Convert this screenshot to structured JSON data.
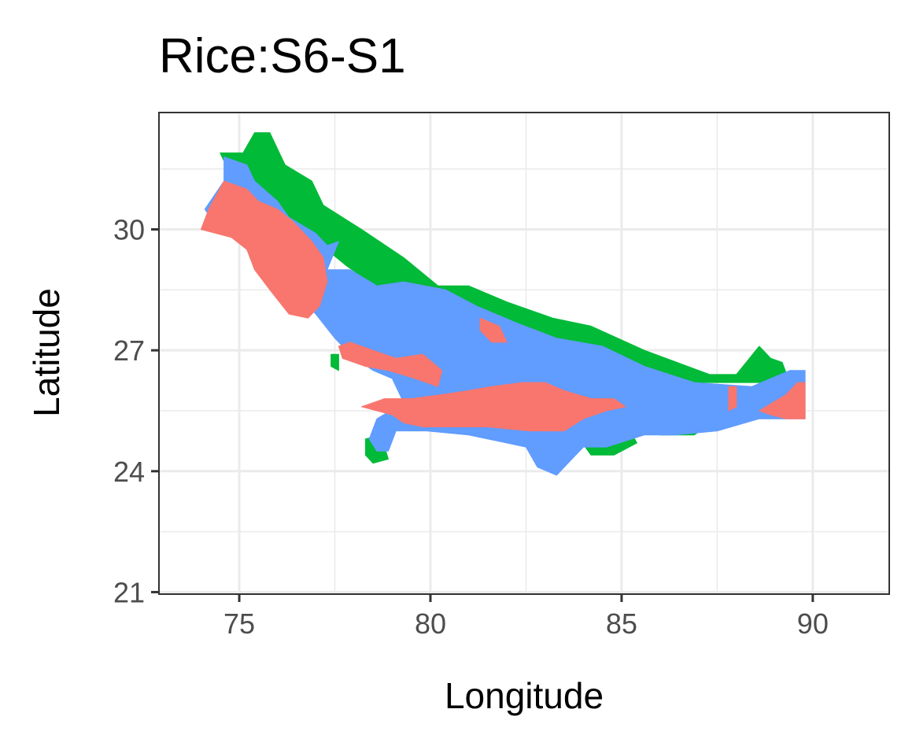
{
  "chart_data": {
    "type": "heatmap",
    "title": "Rice:S6-S1",
    "xlabel": "Longitude",
    "ylabel": "Latitude",
    "xlim": [
      72.9,
      92.0
    ],
    "ylim": [
      20.95,
      32.9
    ],
    "x_ticks": [
      75,
      80,
      85,
      90
    ],
    "y_ticks": [
      21,
      24,
      27,
      30
    ],
    "x_tick_labels": [
      "75",
      "80",
      "85",
      "90"
    ],
    "y_tick_labels": [
      "21",
      "24",
      "27",
      "30"
    ],
    "grid": true,
    "legend": "none",
    "colors": {
      "category_1": "#F8766D",
      "category_2": "#00BA38",
      "category_3": "#619CFF"
    },
    "regions": [
      {
        "color": "category_2",
        "polygons": [
          [
            [
              74.5,
              31.9
            ],
            [
              75.1,
              31.9
            ],
            [
              75.4,
              32.4
            ],
            [
              75.8,
              32.4
            ],
            [
              76.2,
              31.6
            ],
            [
              76.9,
              31.2
            ],
            [
              77.2,
              30.6
            ],
            [
              78.2,
              30.0
            ],
            [
              79.3,
              29.3
            ],
            [
              80.2,
              28.6
            ],
            [
              81.0,
              28.6
            ],
            [
              82.0,
              28.2
            ],
            [
              83.2,
              27.8
            ],
            [
              84.2,
              27.6
            ],
            [
              85.6,
              27.0
            ],
            [
              87.3,
              26.4
            ],
            [
              88.0,
              26.4
            ],
            [
              88.6,
              27.1
            ],
            [
              88.9,
              26.8
            ],
            [
              89.2,
              26.7
            ],
            [
              89.4,
              26.2
            ],
            [
              87.0,
              26.2
            ],
            [
              85.0,
              26.4
            ],
            [
              83.5,
              27.0
            ],
            [
              81.5,
              27.5
            ],
            [
              80.5,
              27.9
            ],
            [
              79.0,
              28.3
            ],
            [
              77.8,
              29.1
            ],
            [
              76.9,
              29.8
            ],
            [
              75.8,
              30.6
            ],
            [
              75.0,
              31.5
            ],
            [
              74.6,
              31.7
            ]
          ],
          [
            [
              83.9,
              25.3
            ],
            [
              84.4,
              25.4
            ],
            [
              85.1,
              25.2
            ],
            [
              85.4,
              24.7
            ],
            [
              84.8,
              24.4
            ],
            [
              84.2,
              24.4
            ],
            [
              83.9,
              24.8
            ]
          ],
          [
            [
              86.0,
              24.9
            ],
            [
              86.9,
              24.9
            ],
            [
              87.2,
              25.1
            ],
            [
              86.7,
              25.4
            ],
            [
              86.0,
              25.2
            ]
          ],
          [
            [
              78.3,
              24.8
            ],
            [
              78.7,
              24.9
            ],
            [
              78.9,
              24.3
            ],
            [
              78.5,
              24.2
            ],
            [
              78.3,
              24.4
            ]
          ],
          [
            [
              77.4,
              26.6
            ],
            [
              77.6,
              26.5
            ],
            [
              77.6,
              26.9
            ],
            [
              77.4,
              26.9
            ]
          ]
        ]
      },
      {
        "color": "category_3",
        "polygons": [
          [
            [
              74.1,
              30.5
            ],
            [
              74.6,
              31.2
            ],
            [
              74.6,
              31.8
            ],
            [
              75.2,
              31.6
            ],
            [
              75.4,
              31.2
            ],
            [
              76.0,
              30.7
            ],
            [
              76.3,
              30.3
            ],
            [
              77.0,
              29.9
            ],
            [
              77.3,
              29.6
            ],
            [
              77.6,
              29.7
            ],
            [
              77.3,
              29.0
            ],
            [
              77.9,
              29.0
            ],
            [
              78.6,
              28.6
            ],
            [
              79.3,
              28.7
            ],
            [
              80.4,
              28.5
            ],
            [
              81.2,
              28.1
            ],
            [
              82.2,
              27.7
            ],
            [
              83.3,
              27.3
            ],
            [
              84.5,
              27.1
            ],
            [
              85.6,
              26.6
            ],
            [
              86.9,
              26.2
            ],
            [
              88.4,
              26.1
            ],
            [
              89.4,
              26.5
            ],
            [
              89.8,
              26.5
            ],
            [
              89.8,
              25.3
            ],
            [
              88.6,
              25.3
            ],
            [
              87.5,
              25.0
            ],
            [
              86.4,
              24.9
            ],
            [
              85.6,
              24.9
            ],
            [
              84.6,
              24.6
            ],
            [
              84.0,
              24.6
            ],
            [
              83.7,
              24.3
            ],
            [
              83.3,
              23.9
            ],
            [
              82.8,
              24.1
            ],
            [
              82.5,
              24.6
            ],
            [
              81.0,
              24.9
            ],
            [
              79.9,
              25.0
            ],
            [
              79.1,
              25.0
            ],
            [
              78.9,
              24.5
            ],
            [
              78.6,
              24.5
            ],
            [
              78.4,
              24.8
            ],
            [
              78.6,
              25.3
            ],
            [
              79.3,
              25.7
            ],
            [
              79.0,
              26.3
            ],
            [
              78.5,
              26.5
            ],
            [
              77.9,
              26.9
            ],
            [
              77.5,
              27.3
            ],
            [
              77.0,
              27.9
            ],
            [
              76.6,
              28.3
            ],
            [
              76.0,
              28.7
            ],
            [
              75.4,
              29.3
            ],
            [
              74.9,
              29.8
            ],
            [
              74.4,
              30.1
            ]
          ]
        ]
      },
      {
        "color": "category_1",
        "polygons": [
          [
            [
              74.0,
              30.0
            ],
            [
              74.2,
              30.5
            ],
            [
              74.6,
              31.2
            ],
            [
              75.2,
              31.0
            ],
            [
              75.5,
              30.7
            ],
            [
              76.0,
              30.5
            ],
            [
              76.4,
              30.2
            ],
            [
              76.9,
              29.7
            ],
            [
              77.2,
              29.3
            ],
            [
              77.3,
              28.7
            ],
            [
              77.1,
              28.1
            ],
            [
              76.8,
              27.8
            ],
            [
              76.3,
              27.9
            ],
            [
              75.8,
              28.5
            ],
            [
              75.4,
              29.0
            ],
            [
              75.2,
              29.5
            ],
            [
              74.8,
              29.8
            ]
          ],
          [
            [
              77.6,
              27.1
            ],
            [
              77.9,
              27.2
            ],
            [
              78.5,
              27.0
            ],
            [
              79.1,
              26.8
            ],
            [
              79.8,
              26.9
            ],
            [
              80.3,
              26.5
            ],
            [
              80.2,
              26.1
            ],
            [
              79.6,
              26.3
            ],
            [
              78.9,
              26.5
            ],
            [
              78.3,
              26.6
            ],
            [
              77.7,
              26.8
            ]
          ],
          [
            [
              78.2,
              25.6
            ],
            [
              78.8,
              25.8
            ],
            [
              79.5,
              25.8
            ],
            [
              80.3,
              25.9
            ],
            [
              81.0,
              26.0
            ],
            [
              81.6,
              26.1
            ],
            [
              82.4,
              26.2
            ],
            [
              83.0,
              26.2
            ],
            [
              83.5,
              26.0
            ],
            [
              84.2,
              25.8
            ],
            [
              84.8,
              25.8
            ],
            [
              85.1,
              25.6
            ],
            [
              84.6,
              25.5
            ],
            [
              84.0,
              25.3
            ],
            [
              83.5,
              25.0
            ],
            [
              82.6,
              25.0
            ],
            [
              81.5,
              25.1
            ],
            [
              80.6,
              25.1
            ],
            [
              79.8,
              25.1
            ],
            [
              79.3,
              25.2
            ],
            [
              79.0,
              25.4
            ],
            [
              78.6,
              25.5
            ]
          ],
          [
            [
              81.3,
              27.8
            ],
            [
              81.8,
              27.6
            ],
            [
              82.0,
              27.2
            ],
            [
              81.6,
              27.2
            ],
            [
              81.3,
              27.5
            ]
          ],
          [
            [
              88.6,
              25.5
            ],
            [
              89.3,
              25.9
            ],
            [
              89.6,
              26.2
            ],
            [
              89.8,
              26.2
            ],
            [
              89.8,
              25.3
            ],
            [
              89.3,
              25.3
            ],
            [
              88.9,
              25.4
            ]
          ],
          [
            [
              87.8,
              25.5
            ],
            [
              88.0,
              25.6
            ],
            [
              88.0,
              26.1
            ],
            [
              87.8,
              26.1
            ]
          ]
        ]
      }
    ]
  }
}
